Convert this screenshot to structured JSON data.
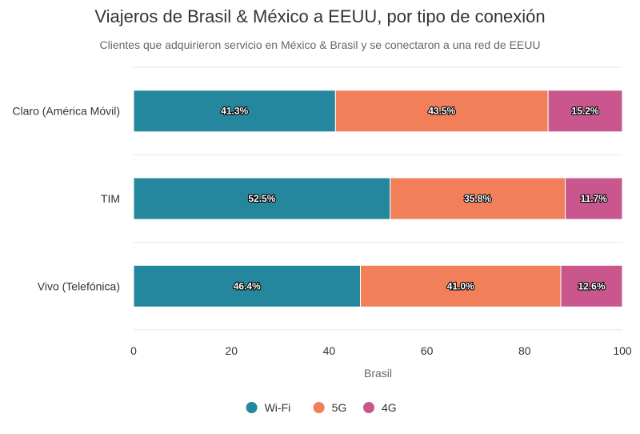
{
  "chart_data": {
    "type": "bar",
    "orientation": "horizontal",
    "stacked": true,
    "title": "Viajeros de Brasil & México a EEUU, por tipo de conexión",
    "subtitle": "Clientes que adquirieron servicio en México & Brasil y se conectaron a una red de EEUU",
    "categories": [
      "Claro (América Móvil)",
      "TIM",
      "Vivo (Telefónica)"
    ],
    "series": [
      {
        "name": "Wi-Fi",
        "color": "#24879d",
        "values": [
          41.3,
          52.5,
          46.4
        ],
        "labels": [
          "41.3%",
          "52.5%",
          "46.4%"
        ]
      },
      {
        "name": "5G",
        "color": "#f07f5a",
        "values": [
          43.5,
          35.8,
          41.0
        ],
        "labels": [
          "43.5%",
          "35.8%",
          "41.0%"
        ]
      },
      {
        "name": "4G",
        "color": "#c9578e",
        "values": [
          15.2,
          11.7,
          12.6
        ],
        "labels": [
          "15.2%",
          "11.7%",
          "12.6%"
        ]
      }
    ],
    "xlabel": "Brasil",
    "xlim": [
      0,
      100
    ],
    "xticks": [
      "0",
      "20",
      "40",
      "60",
      "80",
      "100"
    ],
    "grid": true,
    "legend_position": "bottom"
  }
}
